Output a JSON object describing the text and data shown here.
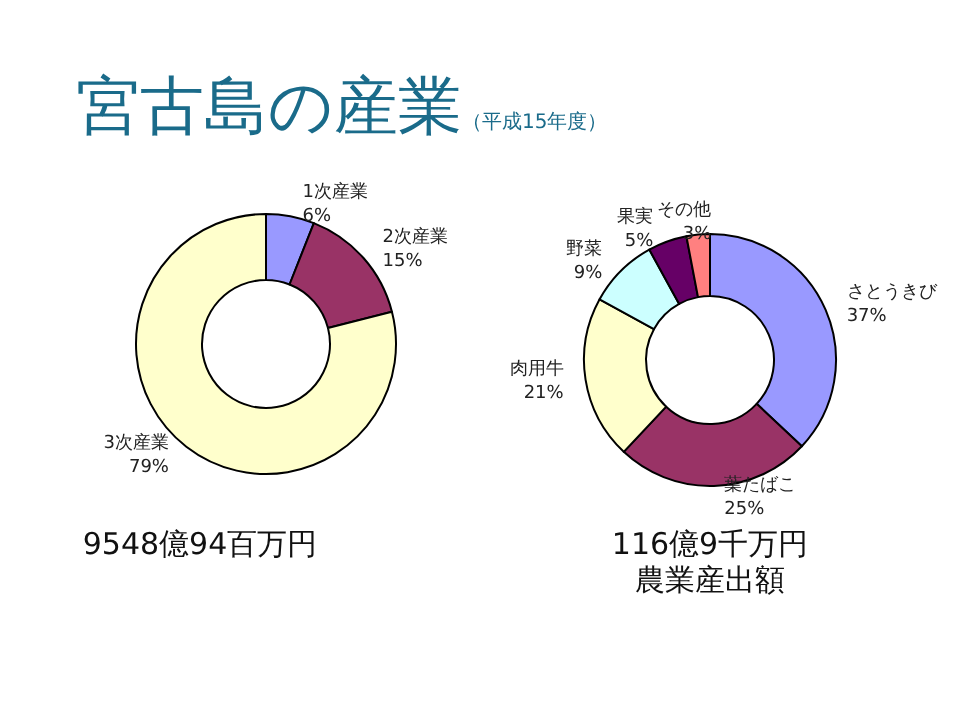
{
  "chart_data": [
    {
      "type": "donut",
      "title": "宮古島の産業",
      "subtitle": "（平成15年度）",
      "categories": [
        "1次産業",
        "2次産業",
        "3次産業"
      ],
      "values": [
        6,
        15,
        79
      ],
      "colors": [
        "#9999ff",
        "#993366",
        "#ffffcc"
      ],
      "value_labels": [
        "6%",
        "15%",
        "79%"
      ],
      "legend": false,
      "annotations": [
        "9548億94百万円"
      ]
    },
    {
      "type": "donut",
      "categories": [
        "さとうきび",
        "葉たばこ",
        "肉用牛",
        "野菜",
        "果実",
        "その他"
      ],
      "values": [
        37,
        25,
        21,
        9,
        5,
        3
      ],
      "colors": [
        "#9999ff",
        "#993366",
        "#ffffcc",
        "#ccffff",
        "#660066",
        "#ff8080"
      ],
      "value_labels": [
        "37%",
        "25%",
        "21%",
        "9%",
        "5%",
        "3%"
      ],
      "legend": false,
      "annotations": [
        "116億9千万円",
        "農業産出額"
      ]
    }
  ]
}
